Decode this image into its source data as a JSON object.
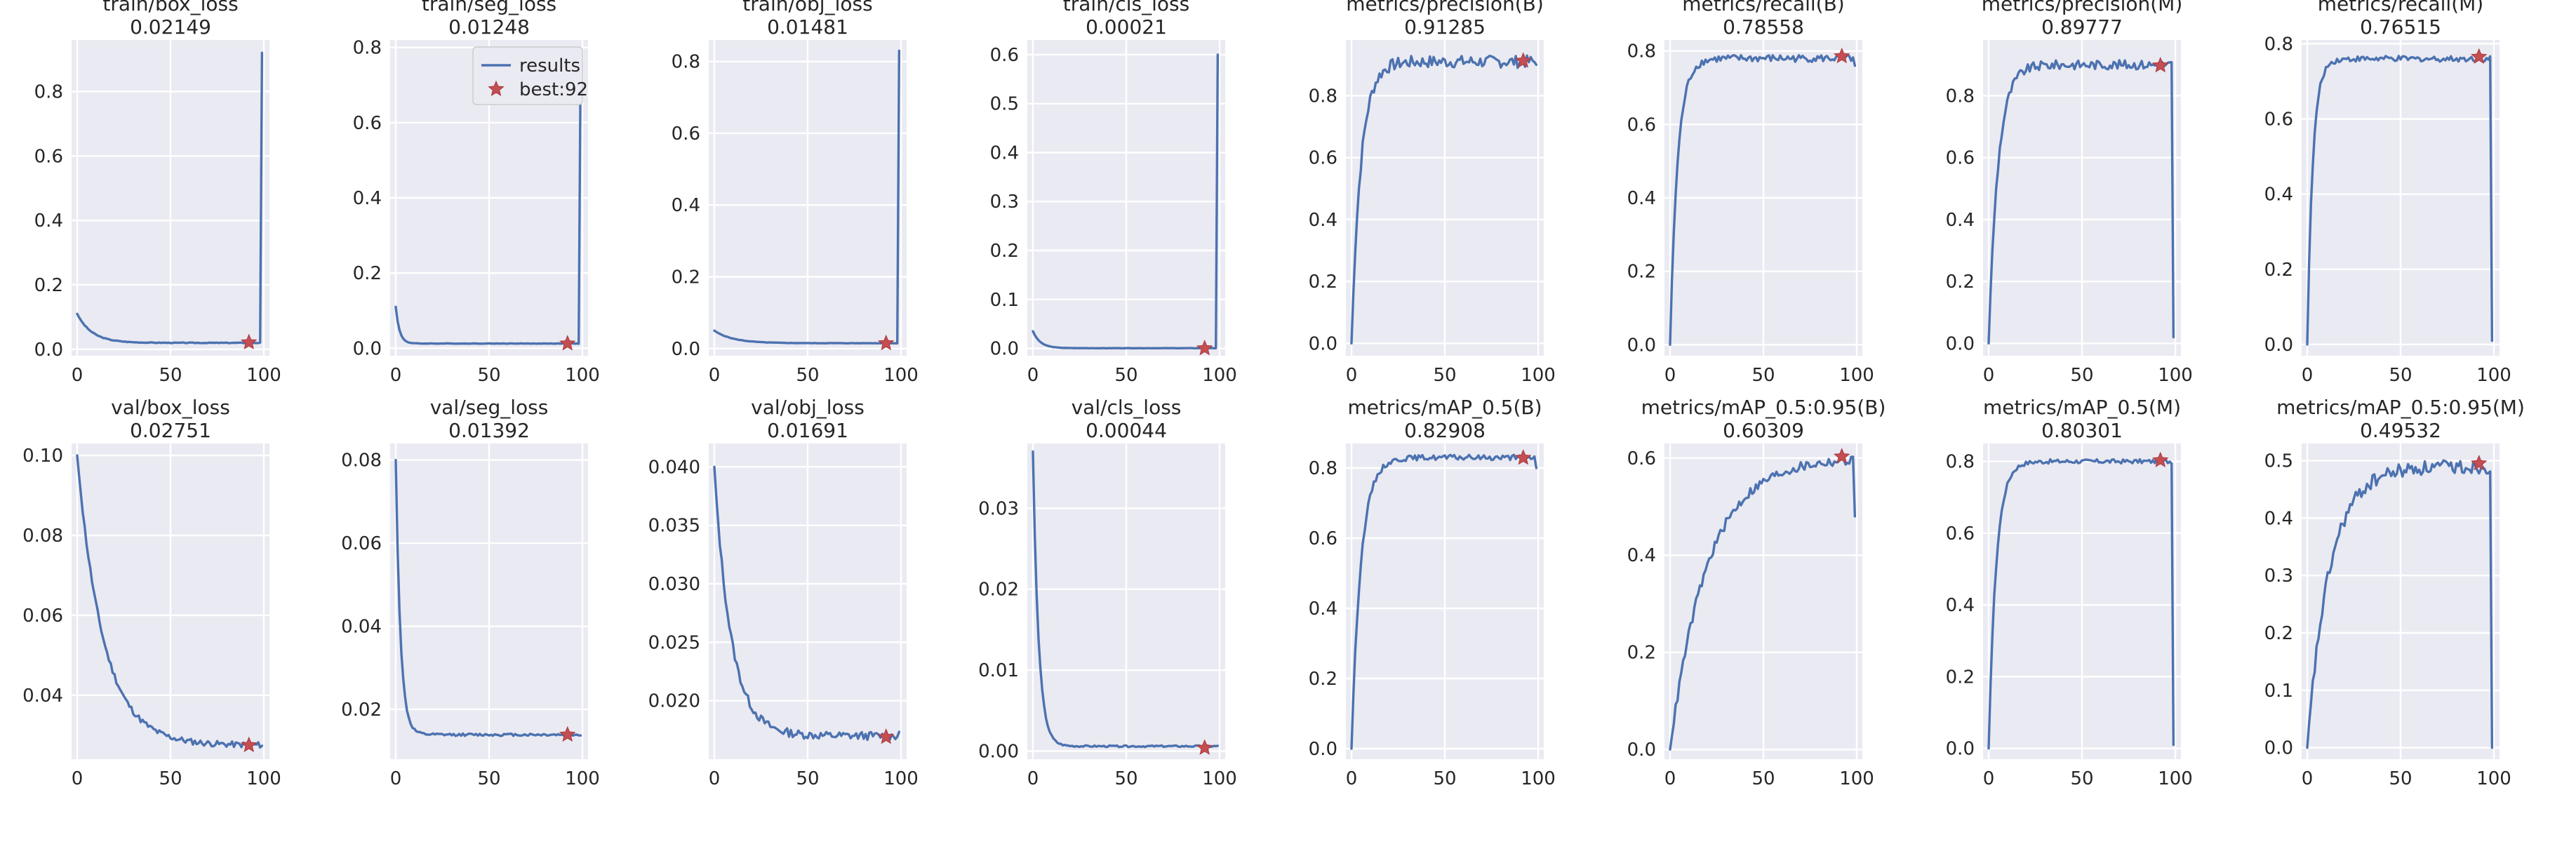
{
  "legend": {
    "line_label": "results",
    "marker_label": "best:92",
    "placement": "top-right",
    "panel": "train/seg_loss"
  },
  "colors": {
    "line": "#4c72b0",
    "marker": "#c44e52",
    "background": "#eaeaf2",
    "grid": "#ffffff"
  },
  "chart_data": [
    {
      "type": "line",
      "title": "train/box_loss",
      "subtitle": "0.02149",
      "xlim": [
        -3,
        103
      ],
      "ylim": [
        -0.02,
        0.96
      ],
      "xticks": [
        0,
        50,
        100
      ],
      "yticks": [
        0.0,
        0.2,
        0.4,
        0.6,
        0.8
      ],
      "ytick_labels": [
        "0.0",
        "0.2",
        "0.4",
        "0.6",
        "0.8"
      ],
      "kind": "loss",
      "y0": 0.11,
      "yfinal": 0.02,
      "k": 8,
      "noise": 0.002,
      "spike": 0.92,
      "best": [
        92,
        0.0215
      ]
    },
    {
      "type": "line",
      "title": "train/seg_loss",
      "subtitle": "0.01248",
      "xlim": [
        -3,
        103
      ],
      "ylim": [
        -0.02,
        0.82
      ],
      "xticks": [
        0,
        50,
        100
      ],
      "yticks": [
        0.0,
        0.2,
        0.4,
        0.6,
        0.8
      ],
      "ytick_labels": [
        "0.0",
        "0.2",
        "0.4",
        "0.6",
        "0.8"
      ],
      "kind": "loss",
      "y0": 0.11,
      "yfinal": 0.0125,
      "k": 2,
      "noise": 0.001,
      "spike": 0.75,
      "best": [
        92,
        0.0125
      ]
    },
    {
      "type": "line",
      "title": "train/obj_loss",
      "subtitle": "0.01481",
      "xlim": [
        -3,
        103
      ],
      "ylim": [
        -0.02,
        0.86
      ],
      "xticks": [
        0,
        50,
        100
      ],
      "yticks": [
        0.0,
        0.2,
        0.4,
        0.6,
        0.8
      ],
      "ytick_labels": [
        "0.0",
        "0.2",
        "0.4",
        "0.6",
        "0.8"
      ],
      "kind": "loss",
      "y0": 0.05,
      "yfinal": 0.015,
      "k": 10,
      "noise": 0.001,
      "spike": 0.83,
      "best": [
        92,
        0.0148
      ]
    },
    {
      "type": "line",
      "title": "train/cls_loss",
      "subtitle": "0.00021",
      "xlim": [
        -3,
        103
      ],
      "ylim": [
        -0.015,
        0.63
      ],
      "xticks": [
        0,
        50,
        100
      ],
      "yticks": [
        0.0,
        0.1,
        0.2,
        0.3,
        0.4,
        0.5,
        0.6
      ],
      "ytick_labels": [
        "0.0",
        "0.1",
        "0.2",
        "0.3",
        "0.4",
        "0.5",
        "0.6"
      ],
      "kind": "loss",
      "y0": 0.035,
      "yfinal": 0.0005,
      "k": 4,
      "noise": 0.0005,
      "spike": 0.6,
      "best": [
        92,
        0.0002
      ]
    },
    {
      "type": "line",
      "title": "metrics/precision(B)",
      "subtitle": "0.91285",
      "xlim": [
        -3,
        103
      ],
      "ylim": [
        -0.04,
        0.98
      ],
      "xticks": [
        0,
        50,
        100
      ],
      "yticks": [
        0.0,
        0.2,
        0.4,
        0.6,
        0.8
      ],
      "ytick_labels": [
        "0.0",
        "0.2",
        "0.4",
        "0.6",
        "0.8"
      ],
      "kind": "metric",
      "ymax": 0.91,
      "k": 5,
      "noise": 0.04,
      "final": 0.9,
      "best": [
        92,
        0.9128
      ]
    },
    {
      "type": "line",
      "title": "metrics/recall(B)",
      "subtitle": "0.78558",
      "xlim": [
        -3,
        103
      ],
      "ylim": [
        -0.03,
        0.83
      ],
      "xticks": [
        0,
        50,
        100
      ],
      "yticks": [
        0.0,
        0.2,
        0.4,
        0.6,
        0.8
      ],
      "ytick_labels": [
        "0.0",
        "0.2",
        "0.4",
        "0.6",
        "0.8"
      ],
      "kind": "metric",
      "ymax": 0.78,
      "k": 4,
      "noise": 0.02,
      "final": 0.76,
      "best": [
        92,
        0.7856
      ]
    },
    {
      "type": "line",
      "title": "metrics/precision(M)",
      "subtitle": "0.89777",
      "xlim": [
        -3,
        103
      ],
      "ylim": [
        -0.04,
        0.98
      ],
      "xticks": [
        0,
        50,
        100
      ],
      "yticks": [
        0.0,
        0.2,
        0.4,
        0.6,
        0.8
      ],
      "ytick_labels": [
        "0.0",
        "0.2",
        "0.4",
        "0.6",
        "0.8"
      ],
      "kind": "metric",
      "ymax": 0.9,
      "k": 5,
      "noise": 0.03,
      "final": 0.02,
      "best": [
        92,
        0.8978
      ]
    },
    {
      "type": "line",
      "title": "metrics/recall(M)",
      "subtitle": "0.76515",
      "xlim": [
        -3,
        103
      ],
      "ylim": [
        -0.03,
        0.81
      ],
      "xticks": [
        0,
        50,
        100
      ],
      "yticks": [
        0.0,
        0.2,
        0.4,
        0.6,
        0.8
      ],
      "ytick_labels": [
        "0.0",
        "0.2",
        "0.4",
        "0.6",
        "0.8"
      ],
      "kind": "metric",
      "ymax": 0.76,
      "k": 3,
      "noise": 0.015,
      "final": 0.01,
      "best": [
        92,
        0.7652
      ]
    },
    {
      "type": "line",
      "title": "val/box_loss",
      "subtitle": "0.02751",
      "xlim": [
        -3,
        103
      ],
      "ylim": [
        0.024,
        0.103
      ],
      "xticks": [
        0,
        50,
        100
      ],
      "yticks": [
        0.04,
        0.06,
        0.08,
        0.1
      ],
      "ytick_labels": [
        "0.04",
        "0.06",
        "0.08",
        "0.10"
      ],
      "kind": "loss",
      "y0": 0.1,
      "yfinal": 0.0275,
      "k": 14,
      "noise": 0.0015,
      "best": [
        92,
        0.0275
      ]
    },
    {
      "type": "line",
      "title": "val/seg_loss",
      "subtitle": "0.01392",
      "xlim": [
        -3,
        103
      ],
      "ylim": [
        0.008,
        0.084
      ],
      "xticks": [
        0,
        50,
        100
      ],
      "yticks": [
        0.02,
        0.04,
        0.06,
        0.08
      ],
      "ytick_labels": [
        "0.02",
        "0.04",
        "0.06",
        "0.08"
      ],
      "kind": "loss",
      "y0": 0.08,
      "yfinal": 0.0139,
      "k": 2.5,
      "noise": 0.0006,
      "best": [
        92,
        0.0139
      ]
    },
    {
      "type": "line",
      "title": "val/obj_loss",
      "subtitle": "0.01691",
      "xlim": [
        -3,
        103
      ],
      "ylim": [
        0.015,
        0.042
      ],
      "xticks": [
        0,
        50,
        100
      ],
      "yticks": [
        0.02,
        0.025,
        0.03,
        0.035,
        0.04
      ],
      "ytick_labels": [
        "0.020",
        "0.025",
        "0.030",
        "0.035",
        "0.040"
      ],
      "kind": "loss",
      "y0": 0.04,
      "yfinal": 0.017,
      "k": 9,
      "noise": 0.0007,
      "best": [
        92,
        0.0169
      ]
    },
    {
      "type": "line",
      "title": "val/cls_loss",
      "subtitle": "0.00044",
      "xlim": [
        -3,
        103
      ],
      "ylim": [
        -0.001,
        0.038
      ],
      "xticks": [
        0,
        50,
        100
      ],
      "yticks": [
        0.0,
        0.01,
        0.02,
        0.03
      ],
      "ytick_labels": [
        "0.00",
        "0.01",
        "0.02",
        "0.03"
      ],
      "kind": "loss",
      "y0": 0.037,
      "yfinal": 0.0006,
      "k": 3,
      "noise": 0.0002,
      "best": [
        92,
        0.0004
      ]
    },
    {
      "type": "line",
      "title": "metrics/mAP_0.5(B)",
      "subtitle": "0.82908",
      "xlim": [
        -3,
        103
      ],
      "ylim": [
        -0.03,
        0.87
      ],
      "xticks": [
        0,
        50,
        100
      ],
      "yticks": [
        0.0,
        0.2,
        0.4,
        0.6,
        0.8
      ],
      "ytick_labels": [
        "0.0",
        "0.2",
        "0.4",
        "0.6",
        "0.8"
      ],
      "kind": "metric",
      "ymax": 0.83,
      "k": 5,
      "noise": 0.015,
      "final": 0.8,
      "best": [
        92,
        0.8291
      ]
    },
    {
      "type": "line",
      "title": "metrics/mAP_0.5:0.95(B)",
      "subtitle": "0.60309",
      "xlim": [
        -3,
        103
      ],
      "ylim": [
        -0.02,
        0.63
      ],
      "xticks": [
        0,
        50,
        100
      ],
      "yticks": [
        0.0,
        0.2,
        0.4,
        0.6
      ],
      "ytick_labels": [
        "0.0",
        "0.2",
        "0.4",
        "0.6"
      ],
      "kind": "metric",
      "ymax": 0.6,
      "k": 20,
      "noise": 0.02,
      "final": 0.48,
      "best": [
        92,
        0.6031
      ]
    },
    {
      "type": "line",
      "title": "metrics/mAP_0.5(M)",
      "subtitle": "0.80301",
      "xlim": [
        -3,
        103
      ],
      "ylim": [
        -0.03,
        0.85
      ],
      "xticks": [
        0,
        50,
        100
      ],
      "yticks": [
        0.0,
        0.2,
        0.4,
        0.6,
        0.8
      ],
      "ytick_labels": [
        "0.0",
        "0.2",
        "0.4",
        "0.6",
        "0.8"
      ],
      "kind": "metric",
      "ymax": 0.8,
      "k": 4,
      "noise": 0.012,
      "final": 0.01,
      "best": [
        92,
        0.803
      ]
    },
    {
      "type": "line",
      "title": "metrics/mAP_0.5:0.95(M)",
      "subtitle": "0.49532",
      "xlim": [
        -3,
        103
      ],
      "ylim": [
        -0.02,
        0.53
      ],
      "xticks": [
        0,
        50,
        100
      ],
      "yticks": [
        0.0,
        0.1,
        0.2,
        0.3,
        0.4,
        0.5
      ],
      "ytick_labels": [
        "0.0",
        "0.1",
        "0.2",
        "0.3",
        "0.4",
        "0.5"
      ],
      "kind": "metric",
      "ymax": 0.49,
      "k": 12,
      "noise": 0.025,
      "final": 0.0,
      "best": [
        92,
        0.4953
      ]
    }
  ]
}
